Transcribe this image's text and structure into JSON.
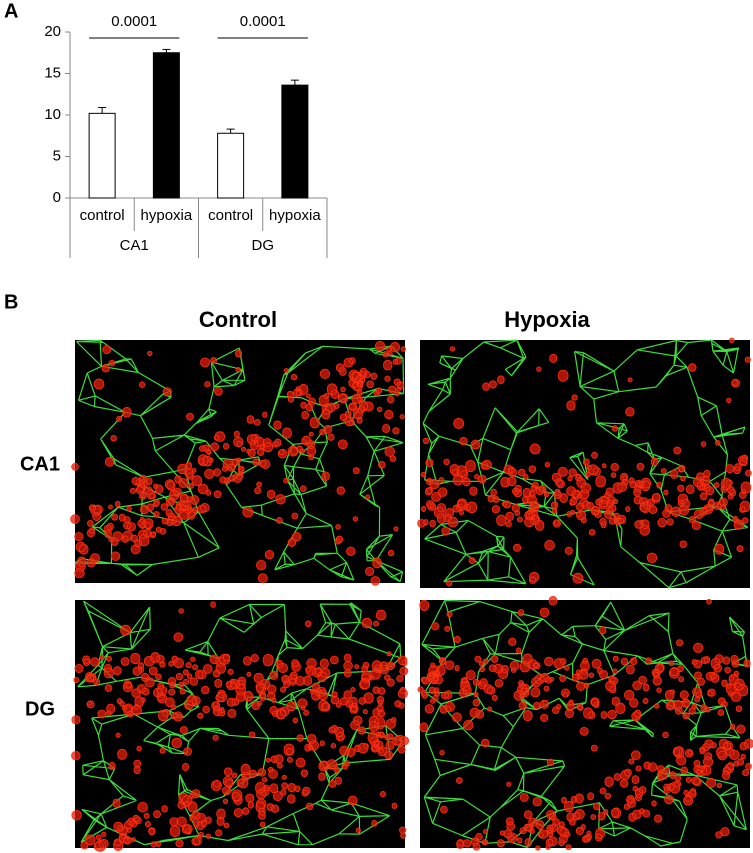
{
  "panels": {
    "a": "A",
    "b": "B"
  },
  "chart_data": {
    "type": "bar",
    "categories": [
      "control",
      "hypoxia",
      "control",
      "hypoxia"
    ],
    "groups": [
      "CA1",
      "DG"
    ],
    "values": [
      10.2,
      17.5,
      7.8,
      13.6
    ],
    "errors": [
      0.7,
      0.4,
      0.5,
      0.6
    ],
    "colors": [
      "#ffffff",
      "#000000",
      "#ffffff",
      "#000000"
    ],
    "annotations": [
      "0.0001",
      "0.0001"
    ],
    "ylim": [
      0,
      20
    ],
    "yticks": [
      0,
      5,
      10,
      15,
      20
    ],
    "grid": false
  },
  "images": {
    "columns": [
      "Control",
      "Hypoxia"
    ],
    "rows": [
      "CA1",
      "DG"
    ]
  }
}
